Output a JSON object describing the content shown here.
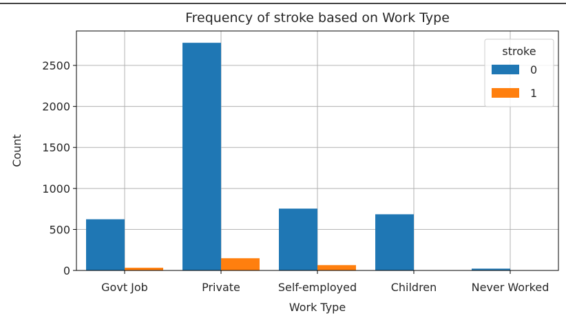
{
  "chart_data": {
    "type": "bar",
    "title": "Frequency of stroke based on Work Type",
    "xlabel": "Work Type",
    "ylabel": "Count",
    "categories": [
      "Govt Job",
      "Private",
      "Self-employed",
      "Children",
      "Never Worked"
    ],
    "series": [
      {
        "name": "0",
        "values": [
          624,
          2776,
          754,
          685,
          22
        ],
        "color": "#1f77b4"
      },
      {
        "name": "1",
        "values": [
          33,
          149,
          65,
          2,
          0
        ],
        "color": "#ff7f0e"
      }
    ],
    "ylim": [
      0,
      2920
    ],
    "yticks": [
      0,
      500,
      1000,
      1500,
      2000,
      2500
    ],
    "legend": {
      "title": "stroke",
      "position": "top-right"
    },
    "grid": true
  }
}
